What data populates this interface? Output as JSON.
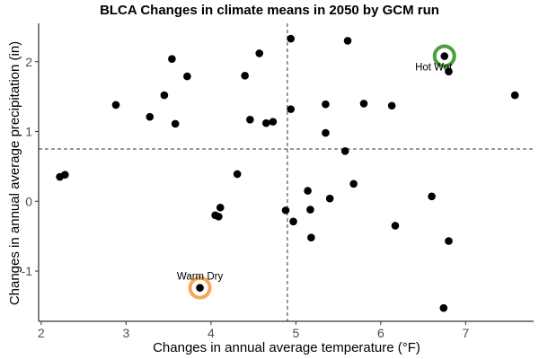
{
  "chart_data": {
    "type": "scatter",
    "title": "BLCA Changes in climate means in 2050 by GCM run",
    "xlabel": "Changes in annual average temperature (°F)",
    "ylabel": "Changes in annual average precipitation (in)",
    "xlim": [
      1.97,
      7.8
    ],
    "ylim": [
      -1.72,
      2.55
    ],
    "x_ticks": [
      2,
      3,
      4,
      5,
      6,
      7
    ],
    "y_ticks": [
      -1,
      0,
      1,
      2
    ],
    "x_tick_labels": [
      "2",
      "3",
      "4",
      "5",
      "6",
      "7"
    ],
    "y_tick_labels": [
      "-1",
      "0",
      "1",
      "2"
    ],
    "grid": false,
    "reference_lines": {
      "x": 4.9,
      "y": 0.75
    },
    "points": [
      {
        "x": 2.22,
        "y": 0.35
      },
      {
        "x": 2.28,
        "y": 0.38
      },
      {
        "x": 2.88,
        "y": 1.38
      },
      {
        "x": 3.28,
        "y": 1.21
      },
      {
        "x": 3.45,
        "y": 1.52
      },
      {
        "x": 3.54,
        "y": 2.04
      },
      {
        "x": 3.58,
        "y": 1.11
      },
      {
        "x": 3.72,
        "y": 1.79
      },
      {
        "x": 3.87,
        "y": -1.24
      },
      {
        "x": 4.05,
        "y": -0.2
      },
      {
        "x": 4.09,
        "y": -0.22
      },
      {
        "x": 4.11,
        "y": -0.09
      },
      {
        "x": 4.31,
        "y": 0.39
      },
      {
        "x": 4.4,
        "y": 1.8
      },
      {
        "x": 4.46,
        "y": 1.17
      },
      {
        "x": 4.57,
        "y": 2.12
      },
      {
        "x": 4.65,
        "y": 1.12
      },
      {
        "x": 4.73,
        "y": 1.14
      },
      {
        "x": 4.88,
        "y": -0.13
      },
      {
        "x": 4.94,
        "y": 2.33
      },
      {
        "x": 4.94,
        "y": 1.32
      },
      {
        "x": 4.97,
        "y": -0.29
      },
      {
        "x": 5.14,
        "y": 0.15
      },
      {
        "x": 5.17,
        "y": -0.12
      },
      {
        "x": 5.18,
        "y": -0.52
      },
      {
        "x": 5.35,
        "y": 0.98
      },
      {
        "x": 5.35,
        "y": 1.39
      },
      {
        "x": 5.4,
        "y": 0.04
      },
      {
        "x": 5.58,
        "y": 0.72
      },
      {
        "x": 5.61,
        "y": 2.3
      },
      {
        "x": 5.68,
        "y": 0.25
      },
      {
        "x": 5.8,
        "y": 1.4
      },
      {
        "x": 6.13,
        "y": 1.37
      },
      {
        "x": 6.17,
        "y": -0.35
      },
      {
        "x": 6.6,
        "y": 0.07
      },
      {
        "x": 6.75,
        "y": 2.08
      },
      {
        "x": 6.74,
        "y": -1.53
      },
      {
        "x": 6.8,
        "y": 1.86
      },
      {
        "x": 6.8,
        "y": -0.57
      },
      {
        "x": 7.58,
        "y": 1.52
      }
    ],
    "highlights": [
      {
        "label": "Hot Wet",
        "x": 6.75,
        "y": 2.08,
        "color": "#4aa03a",
        "label_anchor": "below-left"
      },
      {
        "label": "Warm Dry",
        "x": 3.87,
        "y": -1.24,
        "color": "#f5a857",
        "label_anchor": "above"
      }
    ]
  }
}
